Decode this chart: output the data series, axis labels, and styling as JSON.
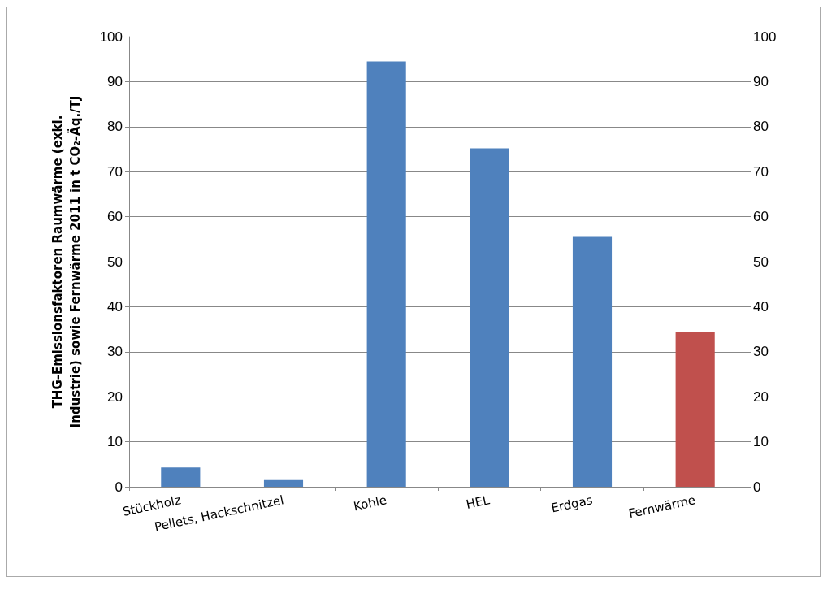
{
  "chart_data": {
    "type": "bar",
    "ylabel": "THG-Emissionsfaktoren Raumwärme (exkl.\nIndustrie) sowie Fernwärme 2011 in t CO₂-Äq./TJ",
    "categories": [
      "Stückholz",
      "Pellets, Hackschnitzel",
      "Kohle",
      "HEL",
      "Erdgas",
      "Fernwärme"
    ],
    "values": [
      4.3,
      1.5,
      94.5,
      75.2,
      55.5,
      34.3
    ],
    "colors": [
      "#4f81bd",
      "#4f81bd",
      "#4f81bd",
      "#4f81bd",
      "#4f81bd",
      "#c0504d"
    ],
    "ylim": [
      0,
      100
    ],
    "yticks": [
      0,
      10,
      20,
      30,
      40,
      50,
      60,
      70,
      80,
      90,
      100
    ],
    "y2lim": [
      0,
      100
    ],
    "y2ticks": [
      0,
      10,
      20,
      30,
      40,
      50,
      60,
      70,
      80,
      90,
      100
    ],
    "grid": "y"
  }
}
